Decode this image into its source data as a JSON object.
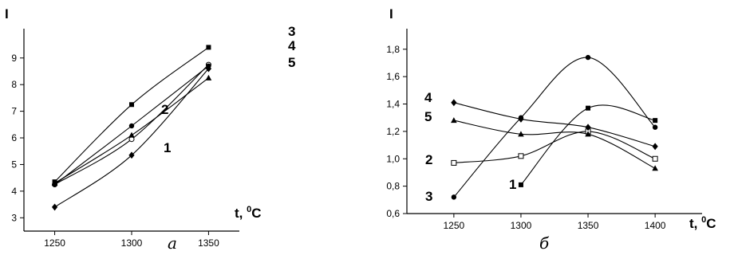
{
  "chart_data": [
    {
      "type": "line",
      "caption": "а",
      "ylabel": "I",
      "xlabel": "t, °C",
      "xlabel_main": "t, ",
      "xlabel_sup": "0",
      "xlabel_unit": "C",
      "x": [
        1250,
        1300,
        1350
      ],
      "xticks": [
        "1250",
        "1300",
        "1350"
      ],
      "xlim": [
        1230,
        1370
      ],
      "ylim": [
        2.5,
        10.1
      ],
      "yticks": [
        3,
        4,
        5,
        6,
        7,
        8,
        9
      ],
      "grid": false,
      "series": [
        {
          "name": "1",
          "marker": "diamond",
          "values": [
            3.4,
            5.35,
            8.6
          ]
        },
        {
          "name": "2",
          "marker": "circle-open",
          "values": [
            4.25,
            5.95,
            8.75
          ]
        },
        {
          "name": "3",
          "marker": "square",
          "values": [
            4.35,
            7.25,
            9.4
          ]
        },
        {
          "name": "4",
          "marker": "circle",
          "values": [
            4.25,
            6.45,
            8.7
          ]
        },
        {
          "name": "5",
          "marker": "triangle",
          "values": [
            4.3,
            6.1,
            8.25
          ]
        }
      ]
    },
    {
      "type": "line",
      "caption": "б",
      "ylabel": "I",
      "xlabel": "t, °C",
      "xlabel_main": "t, ",
      "xlabel_sup": "0",
      "xlabel_unit": "C",
      "x": [
        1250,
        1300,
        1350,
        1400
      ],
      "xticks": [
        "1250",
        "1300",
        "1350",
        "1400"
      ],
      "xlim": [
        1215,
        1435
      ],
      "ylim": [
        0.6,
        1.95
      ],
      "yticks": [
        "0,6",
        "0,8",
        "1,0",
        "1,2",
        "1,4",
        "1,6",
        "1,8"
      ],
      "ytick_values": [
        0.6,
        0.8,
        1.0,
        1.2,
        1.4,
        1.6,
        1.8
      ],
      "grid": false,
      "series": [
        {
          "name": "1",
          "marker": "square",
          "values": [
            null,
            0.81,
            1.37,
            1.28
          ]
        },
        {
          "name": "2",
          "marker": "square-open",
          "values": [
            0.97,
            1.02,
            1.2,
            1.0
          ]
        },
        {
          "name": "3",
          "marker": "circle",
          "values": [
            0.72,
            1.3,
            1.74,
            1.23
          ]
        },
        {
          "name": "4",
          "marker": "diamond",
          "values": [
            1.41,
            1.29,
            1.23,
            1.09
          ]
        },
        {
          "name": "5",
          "marker": "triangle",
          "values": [
            1.28,
            1.18,
            1.18,
            0.93
          ]
        }
      ]
    }
  ]
}
